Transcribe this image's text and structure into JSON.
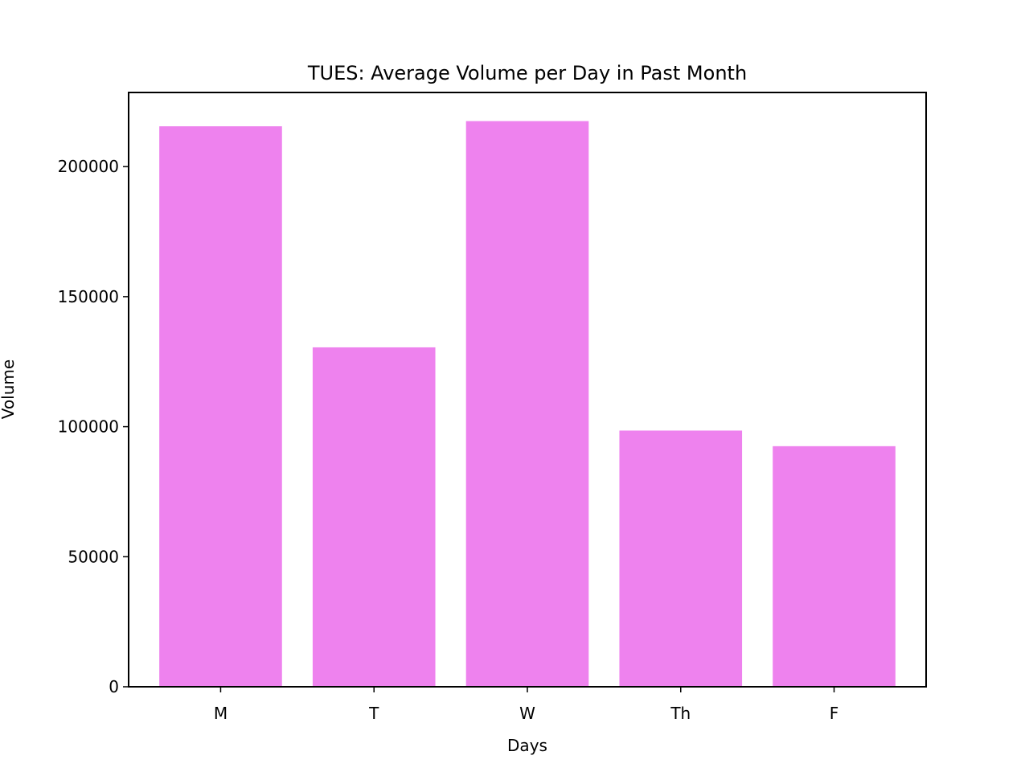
{
  "chart_data": {
    "type": "bar",
    "title": "TUES: Average Volume per Day in Past Month",
    "xlabel": "Days",
    "ylabel": "Volume",
    "categories": [
      "M",
      "T",
      "W",
      "Th",
      "F"
    ],
    "values": [
      215500,
      130500,
      217500,
      98500,
      92500
    ],
    "ylim": [
      0,
      228500
    ],
    "yticks": [
      0,
      50000,
      100000,
      150000,
      200000
    ],
    "ytick_labels": [
      "0",
      "50000",
      "100000",
      "150000",
      "200000"
    ],
    "bar_color": "#ee82ee",
    "grid": false,
    "legend": "none"
  }
}
